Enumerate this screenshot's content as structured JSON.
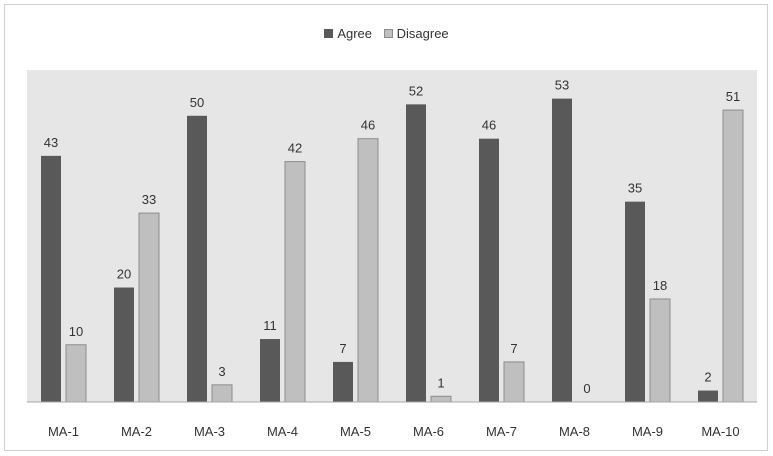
{
  "chart_data": {
    "type": "bar",
    "categories": [
      "MA-1",
      "MA-2",
      "MA-3",
      "MA-4",
      "MA-5",
      "MA-6",
      "MA-7",
      "MA-8",
      "MA-9",
      "MA-10"
    ],
    "series": [
      {
        "name": "Agree",
        "values": [
          43,
          20,
          50,
          11,
          7,
          52,
          46,
          53,
          35,
          2
        ],
        "color": "#595959"
      },
      {
        "name": "Disagree",
        "values": [
          10,
          33,
          3,
          42,
          46,
          1,
          7,
          0,
          18,
          51
        ],
        "color": "#bfbfbf"
      }
    ],
    "ylim": [
      0,
      58
    ],
    "legend_position": "top-center",
    "plot_background": "#e6e6e6",
    "grid": false
  }
}
